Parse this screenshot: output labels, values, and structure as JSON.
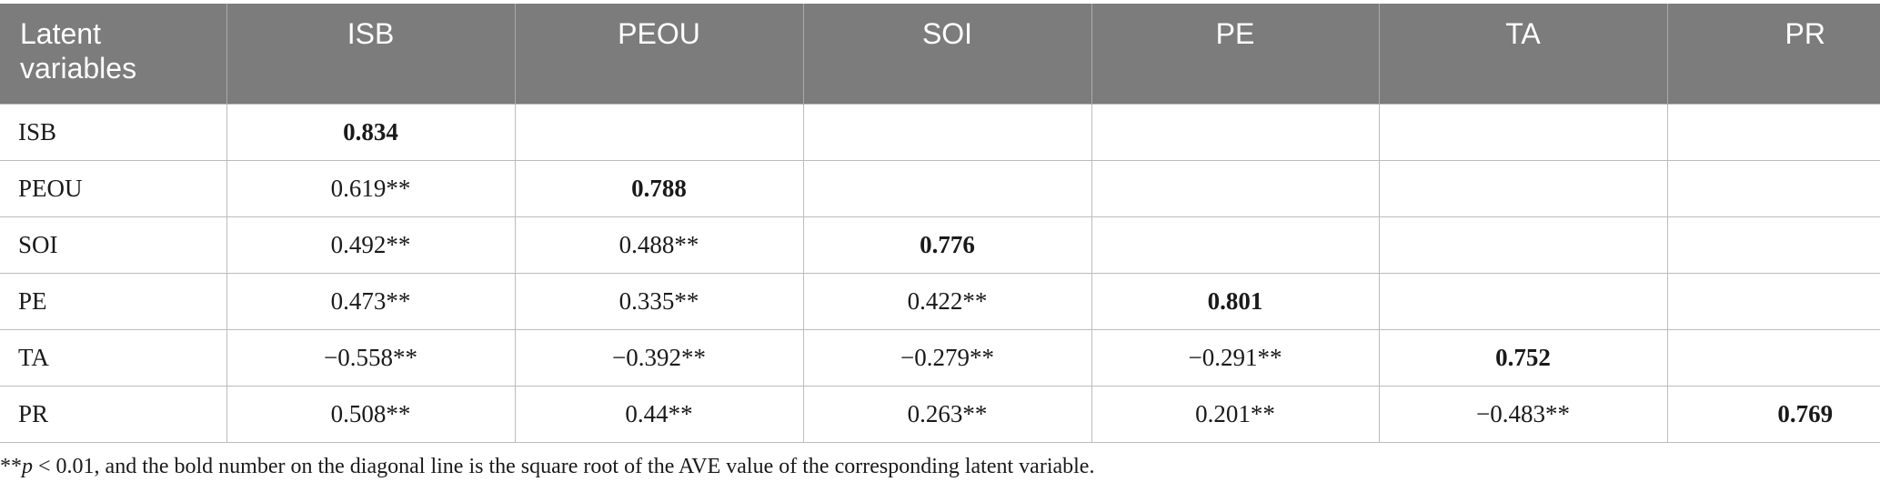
{
  "table": {
    "headers": [
      "Latent variables",
      "ISB",
      "PEOU",
      "SOI",
      "PE",
      "TA",
      "PR"
    ],
    "rows": [
      [
        "ISB",
        "0.834",
        "",
        "",
        "",
        "",
        ""
      ],
      [
        "PEOU",
        "0.619**",
        "0.788",
        "",
        "",
        "",
        ""
      ],
      [
        "SOI",
        "0.492**",
        "0.488**",
        "0.776",
        "",
        "",
        ""
      ],
      [
        "PE",
        "0.473**",
        "0.335**",
        "0.422**",
        "0.801",
        "",
        ""
      ],
      [
        "TA",
        "−0.558**",
        "−0.392**",
        "−0.279**",
        "−0.291**",
        "0.752",
        ""
      ],
      [
        "PR",
        "0.508**",
        "0.44**",
        "0.263**",
        "0.201**",
        "−0.483**",
        "0.769"
      ]
    ]
  },
  "footnote": {
    "prefix": "**",
    "p_symbol": "p",
    "text": " < 0.01, and the bold number on the diagonal line is the square root of the AVE value of the corresponding latent variable."
  },
  "colors": {
    "header_bg": "#7b7c7b",
    "header_text": "#ffffff",
    "grid": "#bcbcbc"
  }
}
